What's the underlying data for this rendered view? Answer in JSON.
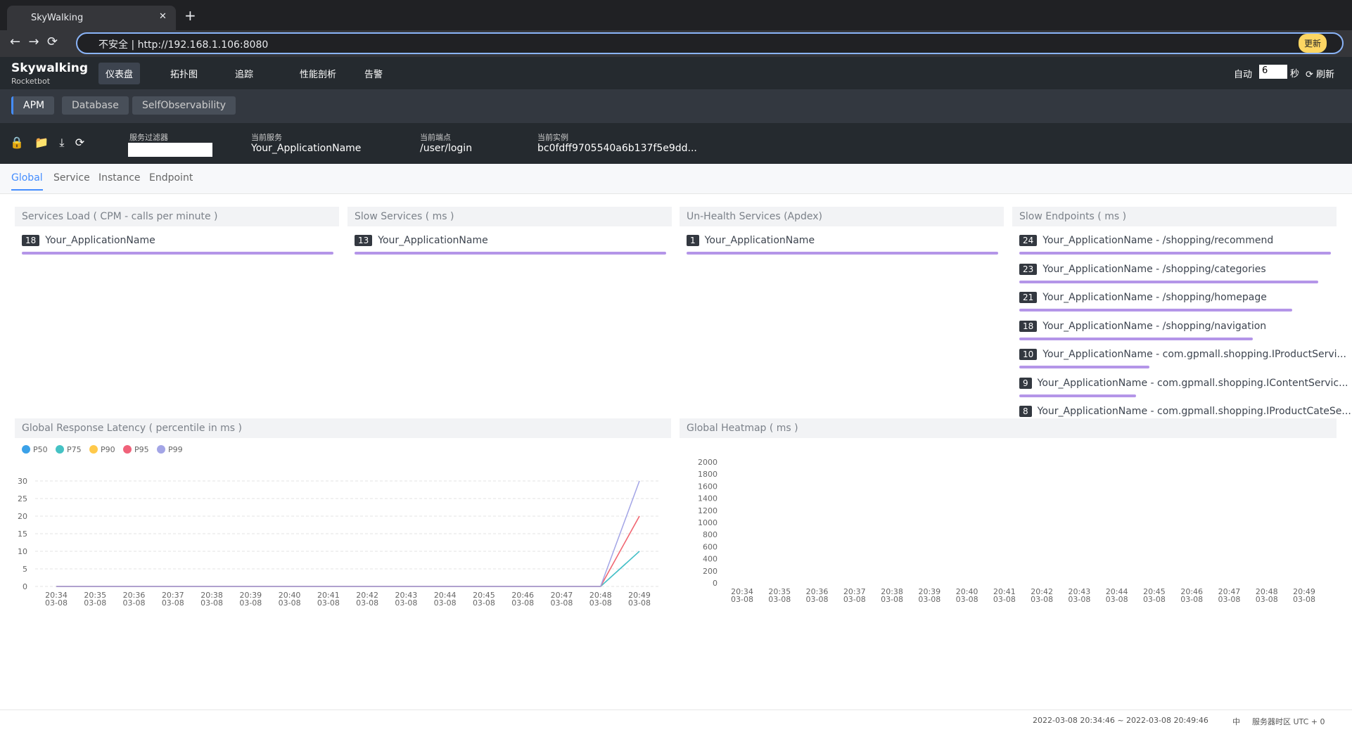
{
  "browser": {
    "tab_title": "SkyWalking",
    "security": "不安全",
    "url": "http://192.168.1.106:8080",
    "update": "更新"
  },
  "header": {
    "logo": "Skywalking",
    "logo_sub": "Rocketbot",
    "nav": [
      "仪表盘",
      "拓扑图",
      "追踪",
      "性能剖析",
      "告警"
    ],
    "auto": "自动",
    "interval": "6",
    "unit": "秒",
    "refresh": "刷新"
  },
  "dashboards": [
    "APM",
    "Database",
    "SelfObservability"
  ],
  "toolbar": {
    "filter_label": "服务过滤器",
    "service_label": "当前服务",
    "service": "Your_ApplicationName",
    "endpoint_label": "当前端点",
    "endpoint": "/user/login",
    "instance_label": "当前实例",
    "instance": "bc0fdff9705540a6b137f5e9dd..."
  },
  "tabs": [
    "Global",
    "Service",
    "Instance",
    "Endpoint"
  ],
  "panels": [
    {
      "title": "Services Load ( CPM - calls per minute )",
      "items": [
        {
          "value": 18,
          "name": "Your_ApplicationName"
        }
      ]
    },
    {
      "title": "Slow Services ( ms )",
      "items": [
        {
          "value": 13,
          "name": "Your_ApplicationName"
        }
      ]
    },
    {
      "title": "Un-Health Services (Apdex)",
      "items": [
        {
          "value": 1,
          "name": "Your_ApplicationName"
        }
      ]
    },
    {
      "title": "Slow Endpoints ( ms )",
      "items": [
        {
          "value": 24,
          "name": "Your_ApplicationName - /shopping/recommend"
        },
        {
          "value": 23,
          "name": "Your_ApplicationName - /shopping/categories"
        },
        {
          "value": 21,
          "name": "Your_ApplicationName - /shopping/homepage"
        },
        {
          "value": 18,
          "name": "Your_ApplicationName - /shopping/navigation"
        },
        {
          "value": 10,
          "name": "Your_ApplicationName - com.gpmall.shopping.IProductServi..."
        },
        {
          "value": 9,
          "name": "Your_ApplicationName - com.gpmall.shopping.IContentServic..."
        },
        {
          "value": 8,
          "name": "Your_ApplicationName - com.gpmall.shopping.IProductCateSe..."
        }
      ]
    }
  ],
  "chart_data": [
    {
      "type": "line",
      "title": "Global Response Latency ( percentile in ms )",
      "categories": [
        "20:34",
        "20:35",
        "20:36",
        "20:37",
        "20:38",
        "20:39",
        "20:40",
        "20:41",
        "20:42",
        "20:43",
        "20:44",
        "20:45",
        "20:46",
        "20:47",
        "20:48",
        "20:49"
      ],
      "category_dates": [
        "03-08",
        "03-08",
        "03-08",
        "03-08",
        "03-08",
        "03-08",
        "03-08",
        "03-08",
        "03-08",
        "03-08",
        "03-08",
        "03-08",
        "03-08",
        "03-08",
        "03-08",
        "03-08"
      ],
      "series": [
        {
          "name": "P50",
          "color": "#3ba1e8",
          "values": [
            0,
            0,
            0,
            0,
            0,
            0,
            0,
            0,
            0,
            0,
            0,
            0,
            0,
            0,
            0,
            10
          ]
        },
        {
          "name": "P75",
          "color": "#45c2c4",
          "values": [
            0,
            0,
            0,
            0,
            0,
            0,
            0,
            0,
            0,
            0,
            0,
            0,
            0,
            0,
            0,
            10
          ]
        },
        {
          "name": "P90",
          "color": "#ffc94a",
          "values": [
            0,
            0,
            0,
            0,
            0,
            0,
            0,
            0,
            0,
            0,
            0,
            0,
            0,
            0,
            0,
            20
          ]
        },
        {
          "name": "P95",
          "color": "#f0627a",
          "values": [
            0,
            0,
            0,
            0,
            0,
            0,
            0,
            0,
            0,
            0,
            0,
            0,
            0,
            0,
            0,
            20
          ]
        },
        {
          "name": "P99",
          "color": "#a3a5e6",
          "values": [
            0,
            0,
            0,
            0,
            0,
            0,
            0,
            0,
            0,
            0,
            0,
            0,
            0,
            0,
            0,
            30
          ]
        }
      ],
      "ylim": [
        0,
        30
      ],
      "yticks": [
        0,
        5,
        10,
        15,
        20,
        25,
        30
      ],
      "grid": true
    },
    {
      "type": "heatmap",
      "title": "Global Heatmap ( ms )",
      "categories": [
        "20:34",
        "20:35",
        "20:36",
        "20:37",
        "20:38",
        "20:39",
        "20:40",
        "20:41",
        "20:42",
        "20:43",
        "20:44",
        "20:45",
        "20:46",
        "20:47",
        "20:48",
        "20:49"
      ],
      "category_dates": [
        "03-08",
        "03-08",
        "03-08",
        "03-08",
        "03-08",
        "03-08",
        "03-08",
        "03-08",
        "03-08",
        "03-08",
        "03-08",
        "03-08",
        "03-08",
        "03-08",
        "03-08",
        "03-08"
      ],
      "ylim": [
        0,
        2000
      ],
      "yticks": [
        0,
        200,
        400,
        600,
        800,
        1000,
        1200,
        1400,
        1600,
        1800,
        2000
      ],
      "grid": false
    }
  ],
  "footer": {
    "range": "2022-03-08 20:34:46 ~ 2022-03-08 20:49:46",
    "lang": "中",
    "timezone": "服务器时区 UTC + 0"
  }
}
